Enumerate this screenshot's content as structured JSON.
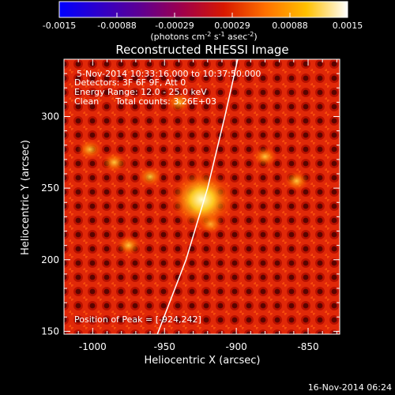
{
  "colorbar": {
    "ticks": [
      "-0.0015",
      "-0.00088",
      "-0.00029",
      "0.00029",
      "0.00088",
      "0.0015"
    ],
    "unit_prefix": "(photons cm",
    "unit_exp1": "-2",
    "unit_mid": " s",
    "unit_exp2": "-1",
    "unit_mid2": " asec",
    "unit_exp3": "-2",
    "unit_suffix": ")",
    "colors": [
      "#0000ff",
      "#3000c8",
      "#600090",
      "#a0004a",
      "#d81800",
      "#ff7000",
      "#ffc000",
      "#ffffff"
    ]
  },
  "plot": {
    "title": "Reconstructed RHESSI Image",
    "info_lines": [
      "5-Nov-2014 10:33:16.000 to 10:37:50.000",
      "Detectors: 3F 6F 9F, Att 0",
      "Energy Range: 12.0 - 25.0 keV",
      "Clean      Total counts: 3.26E+03"
    ],
    "peak_text": "Position of Peak = [-924,242]",
    "xlabel": "Heliocentric X (arcsec)",
    "ylabel": "Heliocentric Y (arcsec)",
    "xticks": [
      "-1000",
      "-950",
      "-900",
      "-850"
    ],
    "yticks": [
      "150",
      "200",
      "250",
      "300"
    ],
    "timestamp": "16-Nov-2014 06:24"
  },
  "chart_data": {
    "type": "heatmap",
    "title": "Reconstructed RHESSI Image",
    "xlabel": "Heliocentric X (arcsec)",
    "ylabel": "Heliocentric Y (arcsec)",
    "xlim": [
      -1020,
      -828
    ],
    "ylim": [
      148,
      340
    ],
    "peak": {
      "x": -924,
      "y": 242
    },
    "secondary_sources": [
      {
        "x": -1002,
        "y": 277
      },
      {
        "x": -985,
        "y": 268
      },
      {
        "x": -960,
        "y": 258
      },
      {
        "x": -918,
        "y": 225
      },
      {
        "x": -940,
        "y": 310
      },
      {
        "x": -880,
        "y": 272
      },
      {
        "x": -975,
        "y": 210
      },
      {
        "x": -858,
        "y": 255
      }
    ],
    "limb": [
      {
        "x": -955,
        "y": 148
      },
      {
        "x": -935,
        "y": 200
      },
      {
        "x": -920,
        "y": 250
      },
      {
        "x": -908,
        "y": 300
      },
      {
        "x": -899,
        "y": 340
      }
    ],
    "colormap": "hot"
  }
}
